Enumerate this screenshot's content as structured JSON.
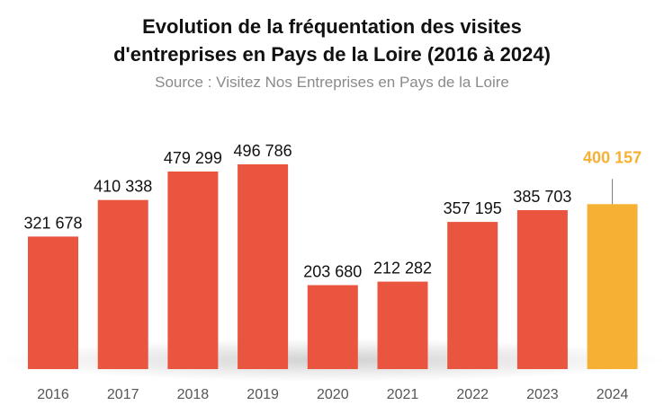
{
  "chart_data": {
    "type": "bar",
    "title_lines": [
      "Evolution de la fréquentation des visites",
      "d'entreprises en Pays de la Loire (2016 à 2024)"
    ],
    "subtitle": "Source : Visitez Nos Entreprises en Pays de la Loire",
    "categories": [
      "2016",
      "2017",
      "2018",
      "2019",
      "2020",
      "2021",
      "2022",
      "2023",
      "2024"
    ],
    "values": [
      321678,
      410338,
      479299,
      496786,
      203680,
      212282,
      357195,
      385703,
      400157
    ],
    "value_labels": [
      "321 678",
      "410 338",
      "479 299",
      "496 786",
      "203 680",
      "212 282",
      "357 195",
      "385 703",
      "400 157"
    ],
    "highlight_index": 8,
    "xlabel": "",
    "ylabel": "",
    "ylim": [
      0,
      500000
    ],
    "grid": false,
    "colors": {
      "bar": "#e9553f",
      "highlight": "#f6b135",
      "label": "#111111",
      "axis_label": "#555555"
    }
  }
}
